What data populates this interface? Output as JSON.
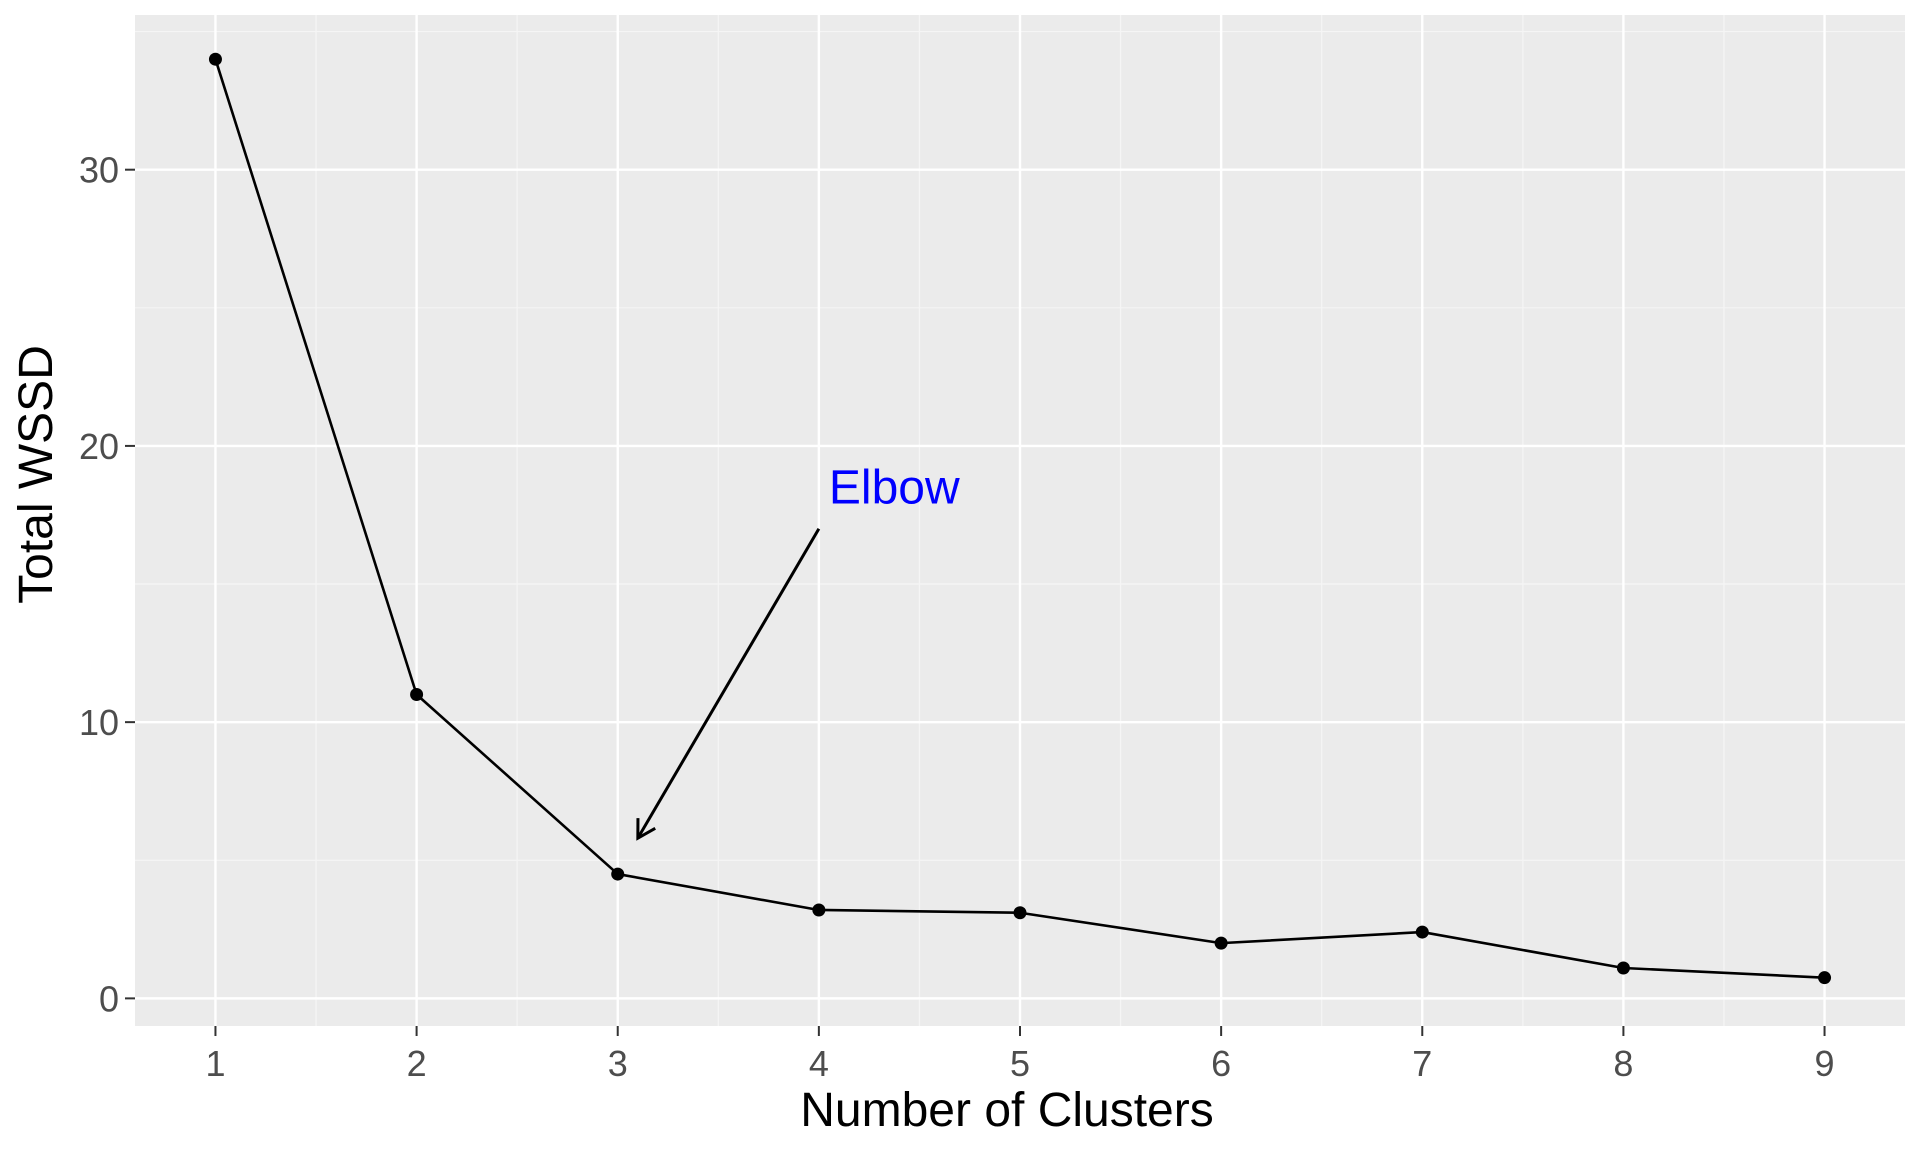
{
  "chart_data": {
    "type": "line",
    "title": "",
    "xlabel": "Number of Clusters",
    "ylabel": "Total WSSD",
    "x": [
      1,
      2,
      3,
      4,
      5,
      6,
      7,
      8,
      9
    ],
    "series": [
      {
        "values": [
          34.0,
          11.0,
          4.5,
          3.2,
          3.1,
          2.0,
          2.4,
          1.1,
          0.75
        ]
      }
    ],
    "xlim": [
      0.6,
      9.4
    ],
    "ylim": [
      -1.0,
      35.6
    ],
    "x_ticks": [
      1,
      2,
      3,
      4,
      5,
      6,
      7,
      8,
      9
    ],
    "x_tick_labels": [
      "1",
      "2",
      "3",
      "4",
      "5",
      "6",
      "7",
      "8",
      "9"
    ],
    "y_ticks": [
      0,
      10,
      20,
      30
    ],
    "y_tick_labels": [
      "0",
      "10",
      "20",
      "30"
    ],
    "grid": true,
    "legend": "none",
    "annotation": {
      "text": "Elbow",
      "text_x": 4.05,
      "text_y": 18.5,
      "arrow_from": [
        4.0,
        17.0
      ],
      "arrow_to": [
        3.1,
        5.8
      ]
    },
    "colors": {
      "panel_background": "#ebebeb",
      "grid_major": "#ffffff",
      "grid_minor": "#f5f5f5",
      "line": "#000000",
      "point": "#000000",
      "annotation_text": "#0000ff",
      "tick_text": "#4d4d4d",
      "axis_title_text": "#000000"
    }
  }
}
